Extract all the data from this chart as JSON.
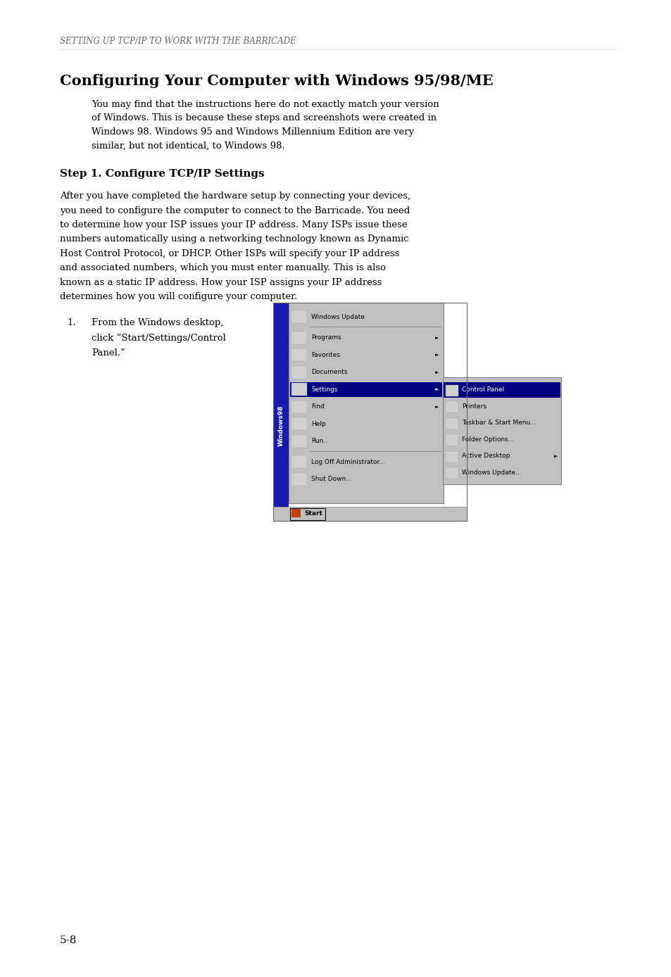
{
  "page_bg": "#ffffff",
  "text_color": "#000000",
  "header_color": "#666666",
  "page_width": 9.54,
  "page_height": 13.88,
  "dpi": 100,
  "header_text": "SETTING UP TCP/IP TO WORK WITH THE BARRICADE",
  "section_title": "Configuring Your Computer with Windows 95/98/ME",
  "step_title": "Step 1. Configure TCP/IP Settings",
  "intro_lines": [
    "You may find that the instructions here do not exactly match your version",
    "of Windows. This is because these steps and screenshots were created in",
    "Windows 98. Windows 95 and Windows Millennium Edition are very",
    "similar, but not identical, to Windows 98."
  ],
  "body_lines": [
    "After you have completed the hardware setup by connecting your devices,",
    "you need to configure the computer to connect to the Barricade. You need",
    "to determine how your ISP issues your IP address. Many ISPs issue these",
    "numbers automatically using a networking technology known as Dynamic",
    "Host Control Protocol, or DHCP. Other ISPs will specify your IP address",
    "and associated numbers, which you must enter manually. This is also",
    "known as a static IP address. How your ISP assigns your IP address",
    "determines how you will configure your computer."
  ],
  "list_number": "1.",
  "list_text_lines": [
    "From the Windows desktop,",
    "click “Start/Settings/Control",
    "Panel.”"
  ],
  "page_number": "5-8",
  "win_menu_items": [
    {
      "label": "Windows Update",
      "has_arrow": false,
      "highlighted": false,
      "separator_after": true
    },
    {
      "label": "Programs",
      "has_arrow": true,
      "highlighted": false,
      "separator_after": false
    },
    {
      "label": "Favorites",
      "has_arrow": true,
      "highlighted": false,
      "separator_after": false
    },
    {
      "label": "Documents",
      "has_arrow": true,
      "highlighted": false,
      "separator_after": false
    },
    {
      "label": "Settings",
      "has_arrow": true,
      "highlighted": true,
      "separator_after": false
    },
    {
      "label": "Find",
      "has_arrow": true,
      "highlighted": false,
      "separator_after": false
    },
    {
      "label": "Help",
      "has_arrow": false,
      "highlighted": false,
      "separator_after": false
    },
    {
      "label": "Run..",
      "has_arrow": false,
      "highlighted": false,
      "separator_after": true
    },
    {
      "label": "Log Off Administrator...",
      "has_arrow": false,
      "highlighted": false,
      "separator_after": false
    },
    {
      "label": "Shut Down...",
      "has_arrow": false,
      "highlighted": false,
      "separator_after": false
    }
  ],
  "win_sub_items": [
    {
      "label": "Control Panel",
      "highlighted": true,
      "has_arrow": false
    },
    {
      "label": "Printers",
      "highlighted": false,
      "has_arrow": false
    },
    {
      "label": "Taskbar & Start Menu...",
      "highlighted": false,
      "has_arrow": false
    },
    {
      "label": "Folder Options...",
      "highlighted": false,
      "has_arrow": false
    },
    {
      "label": "Active Desktop",
      "highlighted": false,
      "has_arrow": true
    },
    {
      "label": "Windows Update...",
      "highlighted": false,
      "has_arrow": false
    }
  ]
}
